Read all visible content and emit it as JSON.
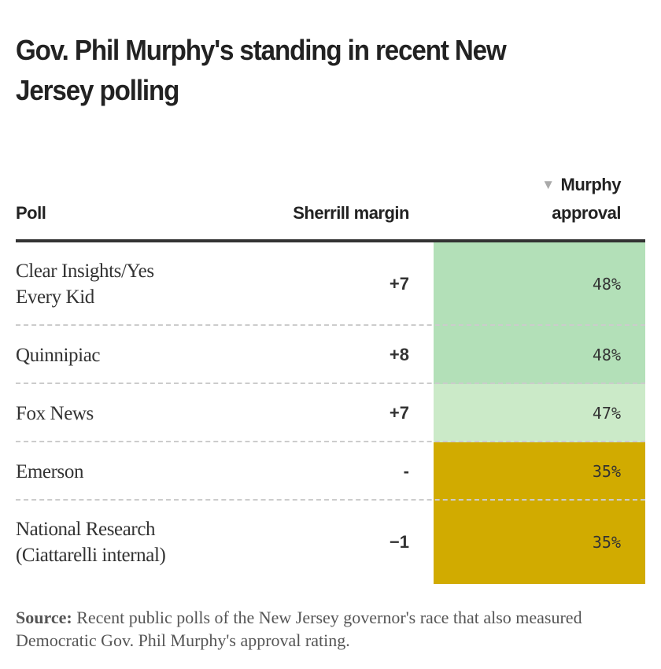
{
  "chart_data": {
    "type": "table",
    "title": "Gov. Phil Murphy's standing in recent New Jersey polling",
    "columns": {
      "poll": "Poll",
      "margin": "Sherrill margin",
      "approval_line1": "Murphy",
      "approval_line2": "approval"
    },
    "sort_icon": "triangle-down-icon",
    "rows": [
      {
        "poll_line1": "Clear Insights/Yes",
        "poll_line2": "Every Kid",
        "margin": "+7",
        "approval": "48%",
        "approval_value": 48,
        "color": "#b3e0b8"
      },
      {
        "poll_line1": "Quinnipiac",
        "poll_line2": "",
        "margin": "+8",
        "approval": "48%",
        "approval_value": 48,
        "color": "#b3e0b8"
      },
      {
        "poll_line1": "Fox News",
        "poll_line2": "",
        "margin": "+7",
        "approval": "47%",
        "approval_value": 47,
        "color": "#cbeac8"
      },
      {
        "poll_line1": "Emerson",
        "poll_line2": "",
        "margin": "-",
        "approval": "35%",
        "approval_value": 35,
        "color": "#d1ab00"
      },
      {
        "poll_line1": "National Research",
        "poll_line2": "(Ciattarelli internal)",
        "margin": "−1",
        "approval": "35%",
        "approval_value": 35,
        "color": "#d1ab00"
      }
    ],
    "source_label": "Source:",
    "source_text": "Recent public polls of the New Jersey governor's race that also measured Democratic Gov. Phil Murphy's approval rating."
  }
}
